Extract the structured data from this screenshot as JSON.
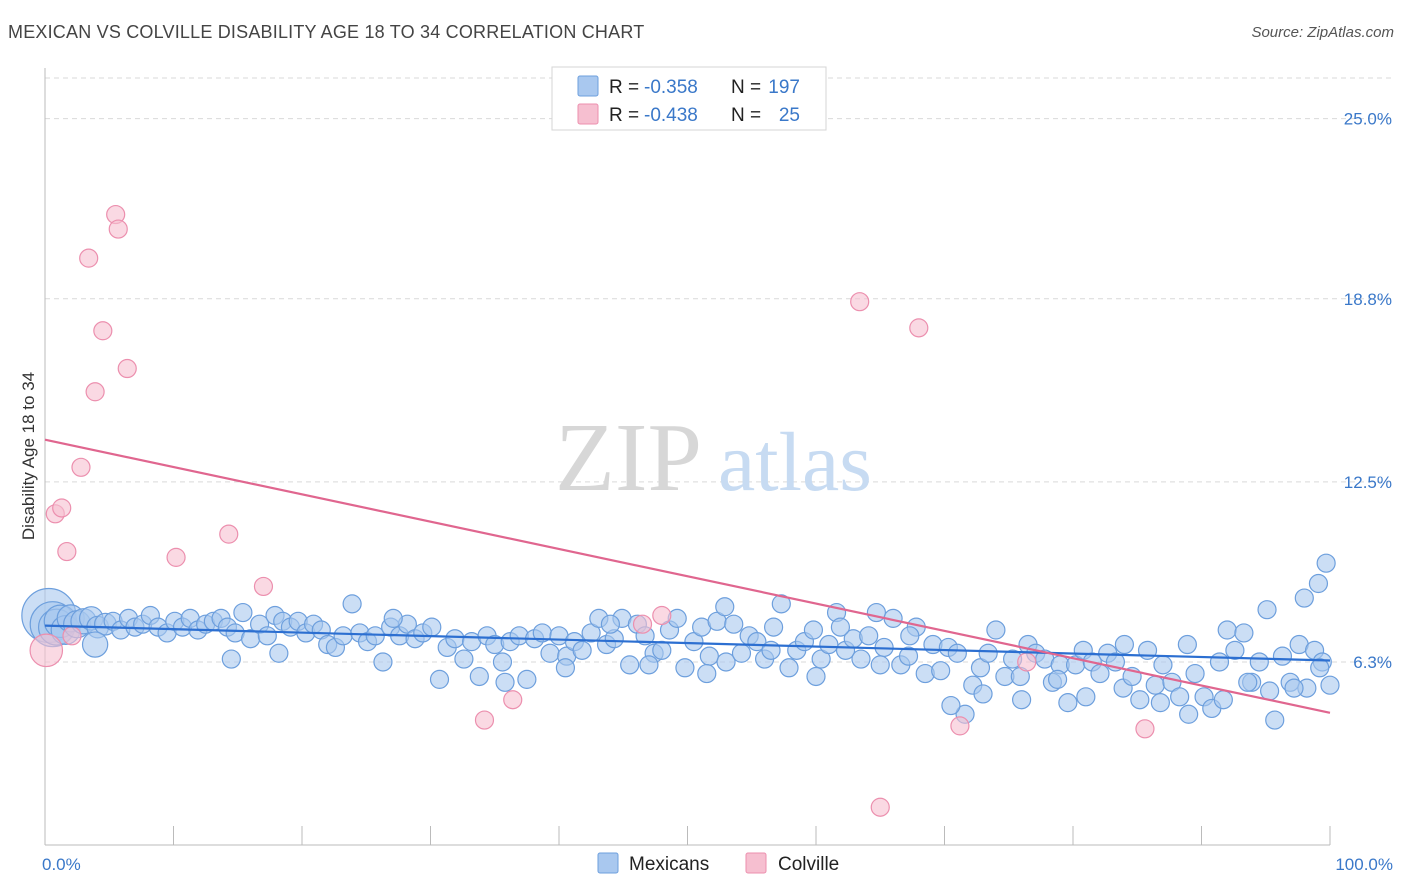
{
  "title": "MEXICAN VS COLVILLE DISABILITY AGE 18 TO 34 CORRELATION CHART",
  "source": "Source: ZipAtlas.com",
  "watermark": {
    "zip": "ZIP",
    "atlas": "atlas"
  },
  "colors": {
    "mexicans_fill": "#a9c8ef",
    "mexicans_stroke": "#6d9fdd",
    "mexicans_line": "#2c6fd1",
    "colville_fill": "#f6bfd0",
    "colville_stroke": "#ec8fae",
    "colville_line": "#e0668f",
    "tick_text": "#3a78c9",
    "grid": "#d9d9d9"
  },
  "legend_top": {
    "rows": [
      {
        "r_label": "R =",
        "r_value": "-0.358",
        "n_label": "N =",
        "n_value": "197"
      },
      {
        "r_label": "R =",
        "r_value": "-0.438",
        "n_label": "N =",
        "n_value": "25"
      }
    ]
  },
  "chart_data": {
    "type": "scatter",
    "title": "MEXICAN VS COLVILLE DISABILITY AGE 18 TO 34 CORRELATION CHART",
    "xlabel": "",
    "ylabel": "Disability Age 18 to 34",
    "xlim": [
      0,
      100
    ],
    "ylim": [
      0,
      26.4
    ],
    "x_tick_labels": [
      "0.0%",
      "100.0%"
    ],
    "y_ticks": [
      6.3,
      12.5,
      18.8,
      25.0
    ],
    "y_tick_labels": [
      "6.3%",
      "12.5%",
      "18.8%",
      "25.0%"
    ],
    "grid": true,
    "legend_position": "bottom-center",
    "series": [
      {
        "name": "Mexicans",
        "r": -0.358,
        "n": 197,
        "trend": {
          "x": [
            0,
            100
          ],
          "y": [
            7.55,
            6.35
          ]
        },
        "points": [
          [
            0.3,
            7.9,
            3
          ],
          [
            0.6,
            7.6,
            2.5
          ],
          [
            0.9,
            7.5,
            2
          ],
          [
            1.2,
            7.7,
            1.8
          ],
          [
            1.6,
            7.4,
            1.6
          ],
          [
            2.0,
            7.8,
            1.5
          ],
          [
            2.5,
            7.6,
            1.5
          ],
          [
            3.0,
            7.7,
            1.4
          ],
          [
            3.6,
            7.8,
            1.3
          ],
          [
            4.1,
            7.5,
            1.2
          ],
          [
            4.7,
            7.6,
            1.2
          ],
          [
            5.3,
            7.7,
            1
          ],
          [
            5.9,
            7.4,
            1
          ],
          [
            6.5,
            7.8,
            1
          ],
          [
            7.0,
            7.5,
            1
          ],
          [
            7.6,
            7.6,
            1
          ],
          [
            8.2,
            7.9,
            1
          ],
          [
            8.8,
            7.5,
            1
          ],
          [
            3.9,
            6.9,
            1.4
          ],
          [
            9.5,
            7.3,
            1
          ],
          [
            10.1,
            7.7,
            1
          ],
          [
            10.7,
            7.5,
            1
          ],
          [
            11.3,
            7.8,
            1
          ],
          [
            11.9,
            7.4,
            1
          ],
          [
            12.5,
            7.6,
            1
          ],
          [
            13.1,
            7.7,
            1
          ],
          [
            13.7,
            7.8,
            1
          ],
          [
            14.2,
            7.5,
            1
          ],
          [
            14.8,
            7.3,
            1
          ],
          [
            15.4,
            8.0,
            1
          ],
          [
            16.0,
            7.1,
            1
          ],
          [
            16.7,
            7.6,
            1
          ],
          [
            17.3,
            7.2,
            1
          ],
          [
            17.9,
            7.9,
            1
          ],
          [
            18.5,
            7.7,
            1
          ],
          [
            19.1,
            7.5,
            1
          ],
          [
            19.7,
            7.7,
            1
          ],
          [
            20.3,
            7.3,
            1
          ],
          [
            20.9,
            7.6,
            1
          ],
          [
            21.5,
            7.4,
            1
          ],
          [
            22.0,
            6.9,
            1
          ],
          [
            22.6,
            6.8,
            1
          ],
          [
            23.2,
            7.2,
            1
          ],
          [
            23.9,
            8.3,
            1
          ],
          [
            24.5,
            7.3,
            1
          ],
          [
            25.1,
            7.0,
            1
          ],
          [
            25.7,
            7.2,
            1
          ],
          [
            26.3,
            6.3,
            1
          ],
          [
            26.9,
            7.5,
            1
          ],
          [
            27.6,
            7.2,
            1
          ],
          [
            28.2,
            7.6,
            1
          ],
          [
            28.8,
            7.1,
            1
          ],
          [
            29.4,
            7.3,
            1
          ],
          [
            30.1,
            7.5,
            1
          ],
          [
            30.7,
            5.7,
            1
          ],
          [
            31.3,
            6.8,
            1
          ],
          [
            31.9,
            7.1,
            1
          ],
          [
            32.6,
            6.4,
            1
          ],
          [
            33.2,
            7.0,
            1
          ],
          [
            33.8,
            5.8,
            1
          ],
          [
            34.4,
            7.2,
            1
          ],
          [
            35.0,
            6.9,
            1
          ],
          [
            35.6,
            6.3,
            1
          ],
          [
            36.2,
            7.0,
            1
          ],
          [
            36.9,
            7.2,
            1
          ],
          [
            37.5,
            5.7,
            1
          ],
          [
            38.1,
            7.1,
            1
          ],
          [
            38.7,
            7.3,
            1
          ],
          [
            39.3,
            6.6,
            1
          ],
          [
            40.0,
            7.2,
            1
          ],
          [
            40.6,
            6.5,
            1
          ],
          [
            41.2,
            7.0,
            1
          ],
          [
            41.8,
            6.7,
            1
          ],
          [
            42.5,
            7.3,
            1
          ],
          [
            43.1,
            7.8,
            1
          ],
          [
            43.7,
            6.9,
            1
          ],
          [
            44.3,
            7.1,
            1
          ],
          [
            44.9,
            7.8,
            1
          ],
          [
            45.5,
            6.2,
            1
          ],
          [
            46.1,
            7.6,
            1
          ],
          [
            46.7,
            7.2,
            1
          ],
          [
            47.4,
            6.6,
            1
          ],
          [
            48.0,
            6.7,
            1
          ],
          [
            48.6,
            7.4,
            1
          ],
          [
            49.2,
            7.8,
            1
          ],
          [
            49.8,
            6.1,
            1
          ],
          [
            50.5,
            7.0,
            1
          ],
          [
            51.1,
            7.5,
            1
          ],
          [
            51.7,
            6.5,
            1
          ],
          [
            52.3,
            7.7,
            1
          ],
          [
            53.0,
            6.3,
            1
          ],
          [
            53.6,
            7.6,
            1
          ],
          [
            54.2,
            6.6,
            1
          ],
          [
            54.8,
            7.2,
            1
          ],
          [
            55.4,
            7.0,
            1
          ],
          [
            56.0,
            6.4,
            1
          ],
          [
            56.7,
            7.5,
            1
          ],
          [
            57.3,
            8.3,
            1
          ],
          [
            57.9,
            6.1,
            1
          ],
          [
            58.5,
            6.7,
            1
          ],
          [
            59.1,
            7.0,
            1
          ],
          [
            59.8,
            7.4,
            1
          ],
          [
            60.4,
            6.4,
            1
          ],
          [
            61.0,
            6.9,
            1
          ],
          [
            61.6,
            8.0,
            1
          ],
          [
            62.3,
            6.7,
            1
          ],
          [
            62.9,
            7.1,
            1
          ],
          [
            63.5,
            6.4,
            1
          ],
          [
            64.1,
            7.2,
            1
          ],
          [
            64.7,
            8.0,
            1
          ],
          [
            65.3,
            6.8,
            1
          ],
          [
            66.0,
            7.8,
            1
          ],
          [
            66.6,
            6.2,
            1
          ],
          [
            67.2,
            6.5,
            1
          ],
          [
            67.8,
            7.5,
            1
          ],
          [
            68.5,
            5.9,
            1
          ],
          [
            69.1,
            6.9,
            1
          ],
          [
            69.7,
            6.0,
            1
          ],
          [
            70.3,
            6.8,
            1
          ],
          [
            71.0,
            6.6,
            1
          ],
          [
            71.6,
            4.5,
            1
          ],
          [
            72.2,
            5.5,
            1
          ],
          [
            72.8,
            6.1,
            1
          ],
          [
            73.4,
            6.6,
            1
          ],
          [
            74.0,
            7.4,
            1
          ],
          [
            74.7,
            5.8,
            1
          ],
          [
            75.3,
            6.4,
            1
          ],
          [
            75.9,
            5.8,
            1
          ],
          [
            76.5,
            6.9,
            1
          ],
          [
            77.1,
            6.6,
            1
          ],
          [
            77.8,
            6.4,
            1
          ],
          [
            78.4,
            5.6,
            1
          ],
          [
            79.0,
            6.2,
            1
          ],
          [
            79.6,
            4.9,
            1
          ],
          [
            80.2,
            6.2,
            1
          ],
          [
            80.8,
            6.7,
            1
          ],
          [
            81.5,
            6.3,
            1
          ],
          [
            82.1,
            5.9,
            1
          ],
          [
            82.7,
            6.6,
            1
          ],
          [
            83.3,
            6.3,
            1
          ],
          [
            83.9,
            5.4,
            1
          ],
          [
            84.6,
            5.8,
            1
          ],
          [
            85.2,
            5.0,
            1
          ],
          [
            85.8,
            6.7,
            1
          ],
          [
            86.4,
            5.5,
            1
          ],
          [
            87.0,
            6.2,
            1
          ],
          [
            87.7,
            5.6,
            1
          ],
          [
            88.3,
            5.1,
            1
          ],
          [
            88.9,
            6.9,
            1
          ],
          [
            89.5,
            5.9,
            1
          ],
          [
            90.2,
            5.1,
            1
          ],
          [
            90.8,
            4.7,
            1
          ],
          [
            91.4,
            6.3,
            1
          ],
          [
            92.0,
            7.4,
            1
          ],
          [
            92.6,
            6.7,
            1
          ],
          [
            93.3,
            7.3,
            1
          ],
          [
            93.9,
            5.6,
            1
          ],
          [
            94.5,
            6.3,
            1
          ],
          [
            95.1,
            8.1,
            1
          ],
          [
            95.7,
            4.3,
            1
          ],
          [
            96.3,
            6.5,
            1
          ],
          [
            96.9,
            5.6,
            1
          ],
          [
            97.6,
            6.9,
            1
          ],
          [
            98.2,
            5.4,
            1
          ],
          [
            98.8,
            6.7,
            1
          ],
          [
            99.4,
            6.3,
            1
          ],
          [
            100.0,
            5.5,
            1
          ],
          [
            14.5,
            6.4,
            1
          ],
          [
            18.2,
            6.6,
            1
          ],
          [
            40.5,
            6.1,
            1
          ],
          [
            47.0,
            6.2,
            1
          ],
          [
            51.5,
            5.9,
            1
          ],
          [
            56.5,
            6.7,
            1
          ],
          [
            60.0,
            5.8,
            1
          ],
          [
            65.0,
            6.2,
            1
          ],
          [
            70.5,
            4.8,
            1
          ],
          [
            73.0,
            5.2,
            1
          ],
          [
            76.0,
            5.0,
            1
          ],
          [
            78.8,
            5.7,
            1
          ],
          [
            81.0,
            5.1,
            1
          ],
          [
            84.0,
            6.9,
            1
          ],
          [
            86.8,
            4.9,
            1
          ],
          [
            89.0,
            4.5,
            1
          ],
          [
            91.7,
            5.0,
            1
          ],
          [
            93.6,
            5.6,
            1
          ],
          [
            95.3,
            5.3,
            1
          ],
          [
            97.2,
            5.4,
            1
          ],
          [
            98.0,
            8.5,
            1
          ],
          [
            99.1,
            9.0,
            1
          ],
          [
            99.7,
            9.7,
            1
          ],
          [
            99.2,
            6.1,
            1
          ],
          [
            27.1,
            7.8,
            1
          ],
          [
            35.8,
            5.6,
            1
          ],
          [
            44.0,
            7.6,
            1
          ],
          [
            52.9,
            8.2,
            1
          ],
          [
            61.9,
            7.5,
            1
          ],
          [
            67.3,
            7.2,
            1
          ]
        ]
      },
      {
        "name": "Colville",
        "r": -0.438,
        "n": 25,
        "trend": {
          "x": [
            0,
            100
          ],
          "y": [
            13.95,
            4.55
          ]
        },
        "points": [
          [
            0.1,
            6.7,
            1.8
          ],
          [
            0.8,
            11.4,
            1
          ],
          [
            1.3,
            11.6,
            1
          ],
          [
            1.7,
            10.1,
            1
          ],
          [
            2.1,
            7.2,
            1
          ],
          [
            2.8,
            13.0,
            1
          ],
          [
            3.4,
            20.2,
            1
          ],
          [
            3.9,
            15.6,
            1
          ],
          [
            4.5,
            17.7,
            1
          ],
          [
            5.5,
            21.7,
            1
          ],
          [
            5.7,
            21.2,
            1
          ],
          [
            6.4,
            16.4,
            1
          ],
          [
            10.2,
            9.9,
            1
          ],
          [
            14.3,
            10.7,
            1
          ],
          [
            17.0,
            8.9,
            1
          ],
          [
            34.2,
            4.3,
            1
          ],
          [
            36.4,
            5.0,
            1
          ],
          [
            46.5,
            7.6,
            1
          ],
          [
            48.0,
            7.9,
            1
          ],
          [
            63.4,
            18.7,
            1
          ],
          [
            65.0,
            1.3,
            1
          ],
          [
            68.0,
            17.8,
            1
          ],
          [
            71.2,
            4.1,
            1
          ],
          [
            76.4,
            6.3,
            1
          ],
          [
            85.6,
            4.0,
            1
          ]
        ]
      }
    ]
  },
  "legend_bottom": {
    "items": [
      "Mexicans",
      "Colville"
    ]
  }
}
